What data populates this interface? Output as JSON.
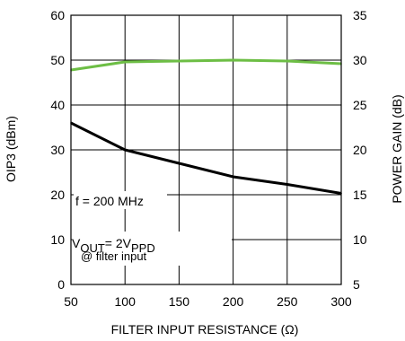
{
  "chart_data": {
    "type": "line",
    "title": "",
    "xlabel": "FILTER INPUT RESISTANCE (Ω)",
    "ylabel_left": "OIP3 (dBm)",
    "ylabel_right": "POWER GAIN (dB)",
    "x_ticks": [
      "50",
      "100",
      "150",
      "200",
      "250",
      "300"
    ],
    "y_left_ticks": [
      "0",
      "10",
      "20",
      "30",
      "40",
      "50",
      "60"
    ],
    "y_right_ticks": [
      "5",
      "10",
      "15",
      "20",
      "25",
      "30",
      "35"
    ],
    "xlim": [
      50,
      300
    ],
    "ylim_left": [
      0,
      60
    ],
    "ylim_right": [
      5,
      35
    ],
    "grid": true,
    "series": [
      {
        "axis": "left",
        "color": "#000000",
        "points": [
          [
            50,
            36
          ],
          [
            100,
            30
          ],
          [
            150,
            27
          ],
          [
            200,
            24
          ],
          [
            250,
            22.3
          ],
          [
            300,
            20.3
          ]
        ]
      },
      {
        "axis": "right",
        "color": "#6DBE45",
        "points": [
          [
            50,
            28.9
          ],
          [
            100,
            29.8
          ],
          [
            150,
            29.9
          ],
          [
            200,
            30.0
          ],
          [
            250,
            29.9
          ],
          [
            300,
            29.6
          ]
        ]
      }
    ],
    "annotations": {
      "freq": "f = 200 MHz",
      "vout_v": "V",
      "vout_sub1": "OUT",
      "vout_eq": "= 2V",
      "vout_sub2": "PPD",
      "vout_note": "@ filter input"
    }
  }
}
